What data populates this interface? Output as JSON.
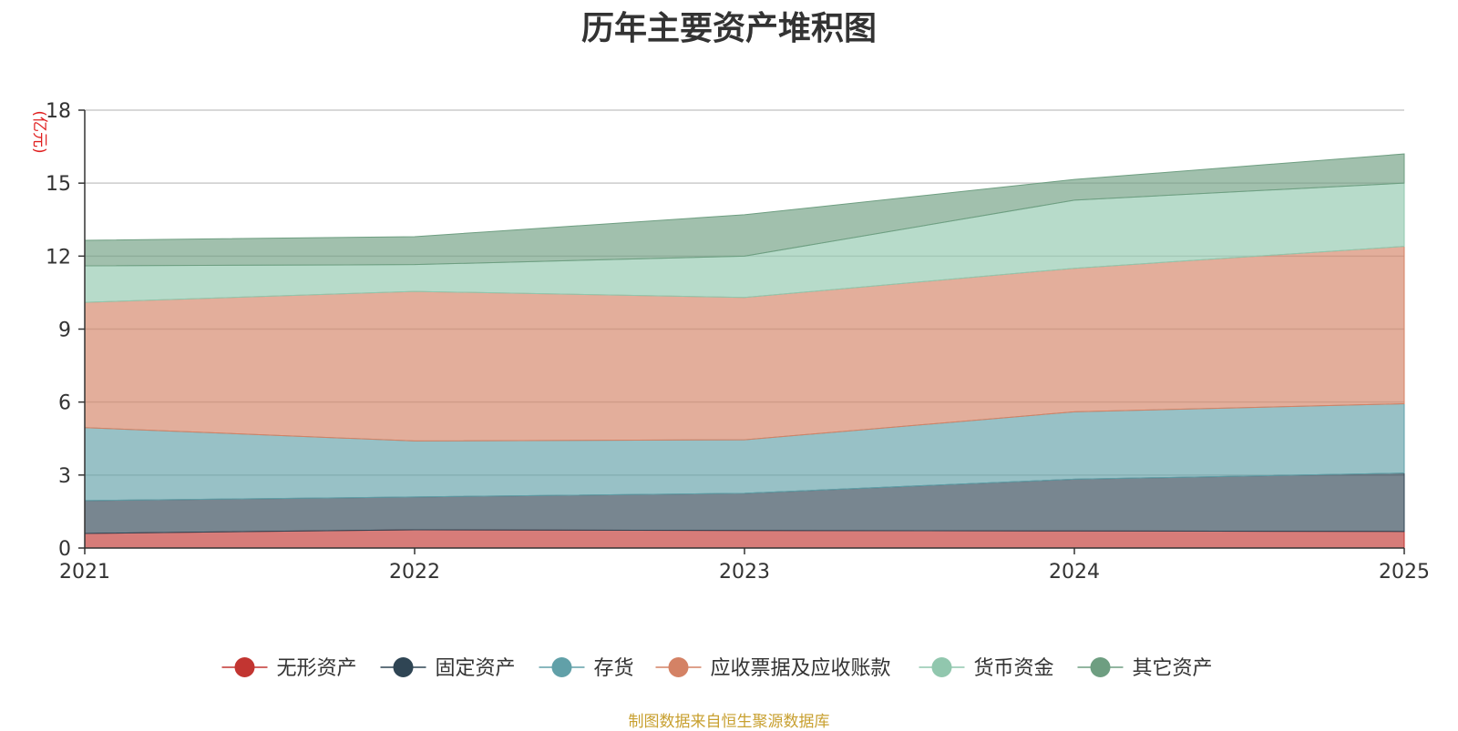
{
  "chart_data": {
    "type": "area",
    "stacked": true,
    "title": "历年主要资产堆积图",
    "ylabel": "(亿元)",
    "xlabel": "",
    "categories": [
      "2021",
      "2022",
      "2023",
      "2024",
      "2025"
    ],
    "ylim": [
      0,
      18
    ],
    "yticks": [
      0,
      3,
      6,
      9,
      12,
      15,
      18
    ],
    "grid": true,
    "legend_position": "bottom",
    "series": [
      {
        "name": "无形资产",
        "values": [
          0.6,
          0.75,
          0.72,
          0.7,
          0.68
        ],
        "color": "#c23531"
      },
      {
        "name": "固定资产",
        "values": [
          1.35,
          1.35,
          1.53,
          2.13,
          2.4
        ],
        "color": "#2f4554"
      },
      {
        "name": "存货",
        "values": [
          3.0,
          2.3,
          2.2,
          2.77,
          2.85
        ],
        "color": "#61a0a8"
      },
      {
        "name": "应收票据及应收账款",
        "values": [
          5.15,
          6.15,
          5.85,
          5.9,
          6.47
        ],
        "color": "#d48265"
      },
      {
        "name": "货币资金",
        "values": [
          1.5,
          1.1,
          1.7,
          2.8,
          2.6
        ],
        "color": "#91c7ae"
      },
      {
        "name": "其它资产",
        "values": [
          1.05,
          1.15,
          1.7,
          0.85,
          1.2
        ],
        "color": "#6e9e81"
      }
    ]
  },
  "source_note": "制图数据来自恒生聚源数据库"
}
